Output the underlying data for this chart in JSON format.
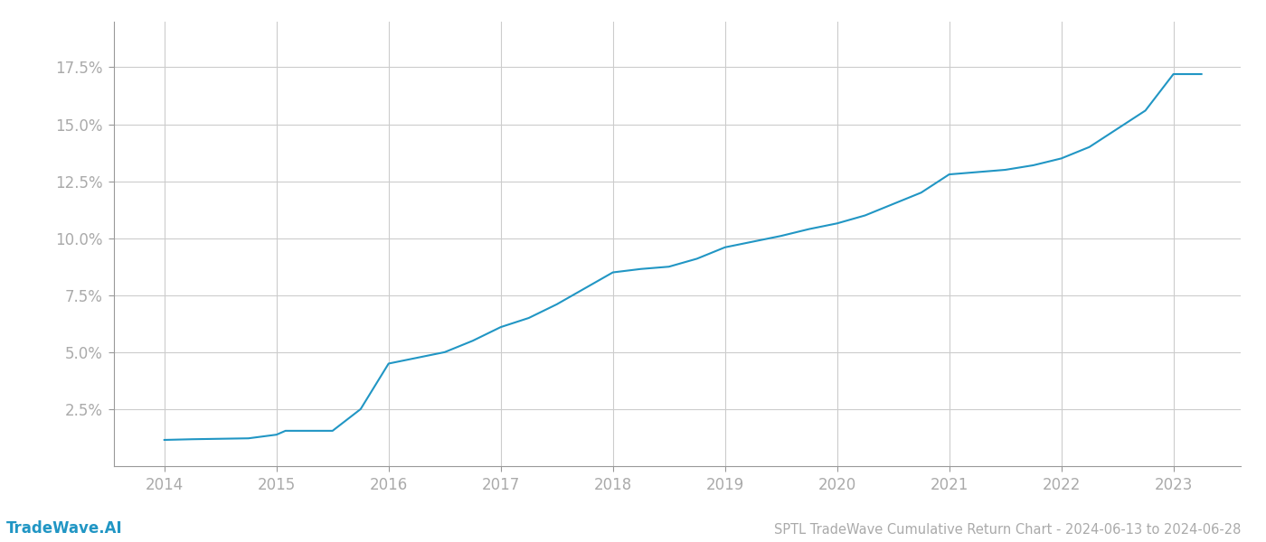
{
  "title": "SPTL TradeWave Cumulative Return Chart - 2024-06-13 to 2024-06-28",
  "watermark": "TradeWave.AI",
  "line_color": "#2196c4",
  "background_color": "#ffffff",
  "grid_color": "#cccccc",
  "tick_color": "#aaaaaa",
  "spine_color": "#999999",
  "x_values": [
    2014.0,
    2014.25,
    2014.5,
    2014.75,
    2015.0,
    2015.08,
    2015.25,
    2015.5,
    2015.75,
    2016.0,
    2016.25,
    2016.5,
    2016.75,
    2017.0,
    2017.25,
    2017.5,
    2017.75,
    2018.0,
    2018.25,
    2018.5,
    2018.75,
    2019.0,
    2019.25,
    2019.5,
    2019.75,
    2020.0,
    2020.25,
    2020.5,
    2020.75,
    2021.0,
    2021.25,
    2021.5,
    2021.75,
    2022.0,
    2022.25,
    2022.5,
    2022.75,
    2023.0,
    2023.25
  ],
  "y_values": [
    1.15,
    1.18,
    1.2,
    1.22,
    1.38,
    1.55,
    1.55,
    1.55,
    2.5,
    4.5,
    4.75,
    5.0,
    5.5,
    6.1,
    6.5,
    7.1,
    7.8,
    8.5,
    8.65,
    8.75,
    9.1,
    9.6,
    9.85,
    10.1,
    10.4,
    10.65,
    11.0,
    11.5,
    12.0,
    12.8,
    12.9,
    13.0,
    13.2,
    13.5,
    14.0,
    14.8,
    15.6,
    17.2,
    17.2
  ],
  "xlim": [
    2013.55,
    2023.6
  ],
  "ylim": [
    0.0,
    19.5
  ],
  "yticks": [
    2.5,
    5.0,
    7.5,
    10.0,
    12.5,
    15.0,
    17.5
  ],
  "xticks": [
    2014,
    2015,
    2016,
    2017,
    2018,
    2019,
    2020,
    2021,
    2022,
    2023
  ],
  "line_width": 1.5,
  "title_fontsize": 10.5,
  "tick_fontsize": 12,
  "watermark_fontsize": 12
}
